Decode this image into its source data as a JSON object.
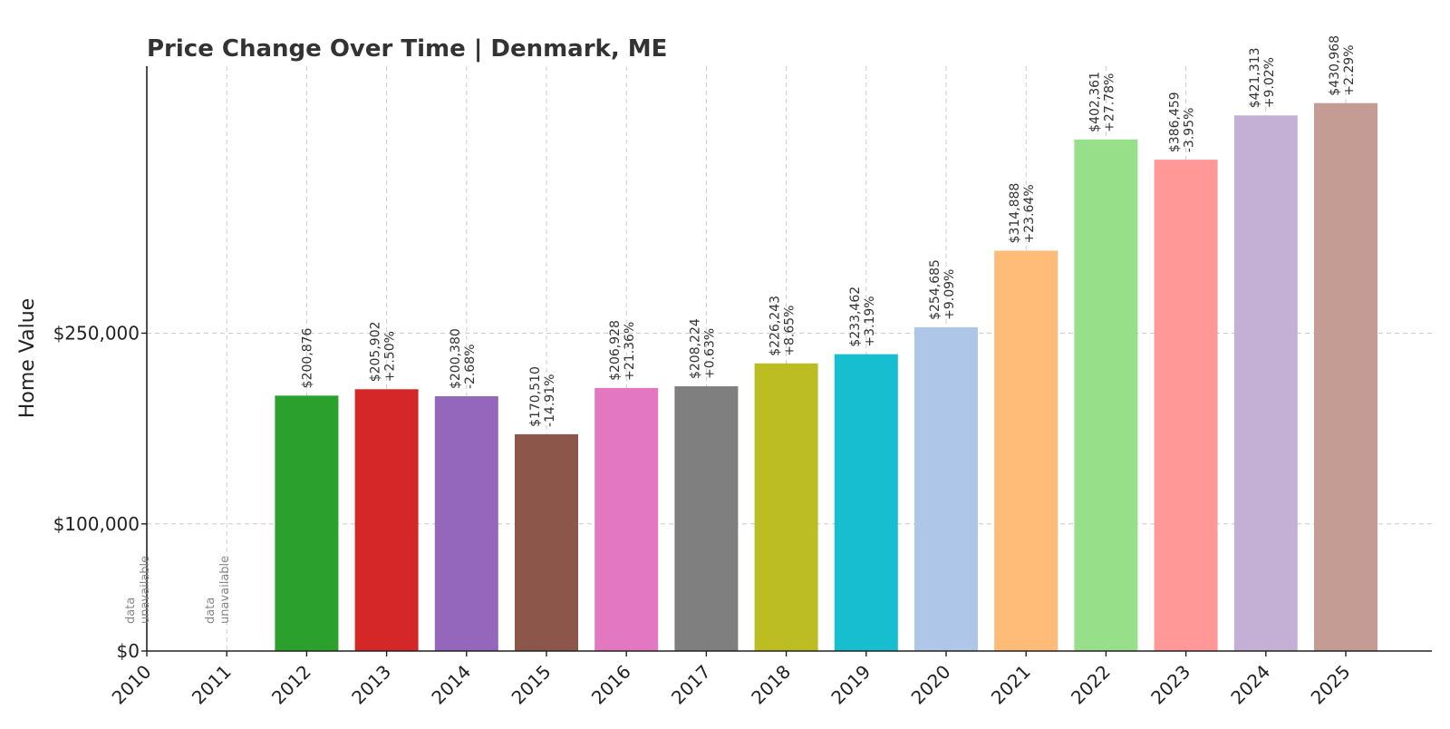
{
  "chart_data": {
    "type": "bar",
    "title": "Price Change Over Time | Denmark, ME",
    "ylabel": "Home Value",
    "xlabel": "",
    "ylim": [
      0,
      450000
    ],
    "grid": true,
    "yticks": [
      {
        "value": 0,
        "label": "$0"
      },
      {
        "value": 100000,
        "label": "$100,000"
      },
      {
        "value": 250000,
        "label": "$250,000"
      }
    ],
    "unavailable_text": [
      "data",
      "unavailable"
    ],
    "categories": [
      "2010",
      "2011",
      "2012",
      "2013",
      "2014",
      "2015",
      "2016",
      "2017",
      "2018",
      "2019",
      "2020",
      "2021",
      "2022",
      "2023",
      "2024",
      "2025"
    ],
    "values": [
      null,
      null,
      200876,
      205902,
      200380,
      170510,
      206928,
      208224,
      226243,
      233462,
      254685,
      314888,
      402361,
      386459,
      421313,
      430968
    ],
    "value_labels": [
      null,
      null,
      "$200,876",
      "$205,902",
      "$200,380",
      "$170,510",
      "$206,928",
      "$208,224",
      "$226,243",
      "$233,462",
      "$254,685",
      "$314,888",
      "$402,361",
      "$386,459",
      "$421,313",
      "$430,968"
    ],
    "change_labels": [
      null,
      null,
      null,
      "+2.50%",
      "-2.68%",
      "-14.91%",
      "+21.36%",
      "+0.63%",
      "+8.65%",
      "+3.19%",
      "+9.09%",
      "+23.64%",
      "+27.78%",
      "-3.95%",
      "+9.02%",
      "+2.29%"
    ],
    "colors": [
      "#1f77b4",
      "#ff7f0e",
      "#2ca02c",
      "#d62728",
      "#9467bd",
      "#8c564b",
      "#e377c2",
      "#7f7f7f",
      "#bcbd22",
      "#17becf",
      "#aec7e8",
      "#ffbb78",
      "#98df8a",
      "#ff9896",
      "#c5b0d5",
      "#c49c94"
    ]
  }
}
